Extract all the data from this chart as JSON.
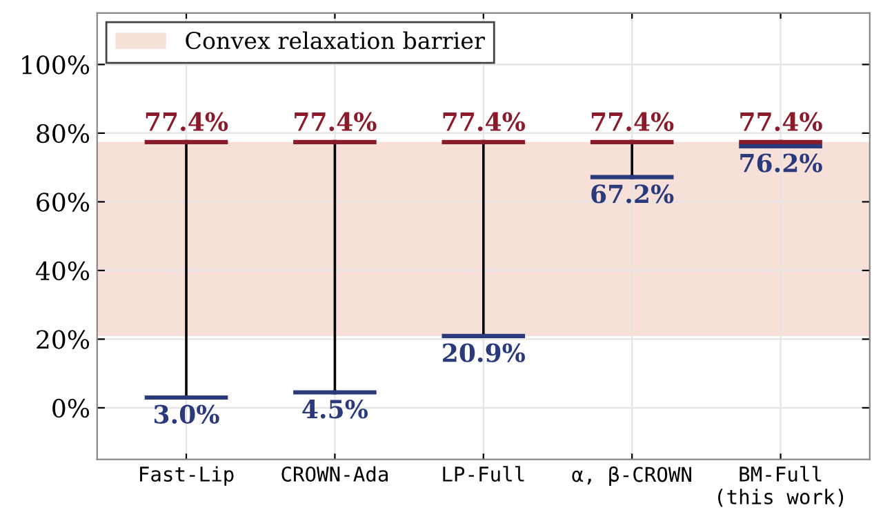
{
  "chart_data": {
    "type": "scatter",
    "categories": [
      "Fast-Lip",
      "CROWN-Ada",
      "LP-Full",
      "α, β-CROWN",
      "BM-Full\n(this work)"
    ],
    "series": [
      {
        "color": "#8b1a2b",
        "values": [
          77.4,
          77.4,
          77.4,
          77.4,
          77.4
        ],
        "value_labels": [
          "77.4%",
          "77.4%",
          "77.4%",
          "77.4%",
          "77.4%"
        ]
      },
      {
        "color": "#2b3a7a",
        "values": [
          3.0,
          4.5,
          20.9,
          67.2,
          76.2
        ],
        "value_labels": [
          "3.0%",
          "4.5%",
          "20.9%",
          "67.2%",
          "76.2%"
        ]
      }
    ],
    "ylim": [
      -15,
      115
    ],
    "yticks": [
      {
        "value": 0,
        "label": "0%"
      },
      {
        "value": 20,
        "label": "20%"
      },
      {
        "value": 40,
        "label": "40%"
      },
      {
        "value": 60,
        "label": "60%"
      },
      {
        "value": 80,
        "label": "80%"
      },
      {
        "value": 100,
        "label": "100%"
      }
    ],
    "bands": [
      {
        "axis": "y",
        "from": 20.9,
        "to": 77.4,
        "label": "Convex relaxation barrier",
        "color": "#f6e0d8"
      }
    ],
    "grid": true,
    "legend": "top left"
  }
}
